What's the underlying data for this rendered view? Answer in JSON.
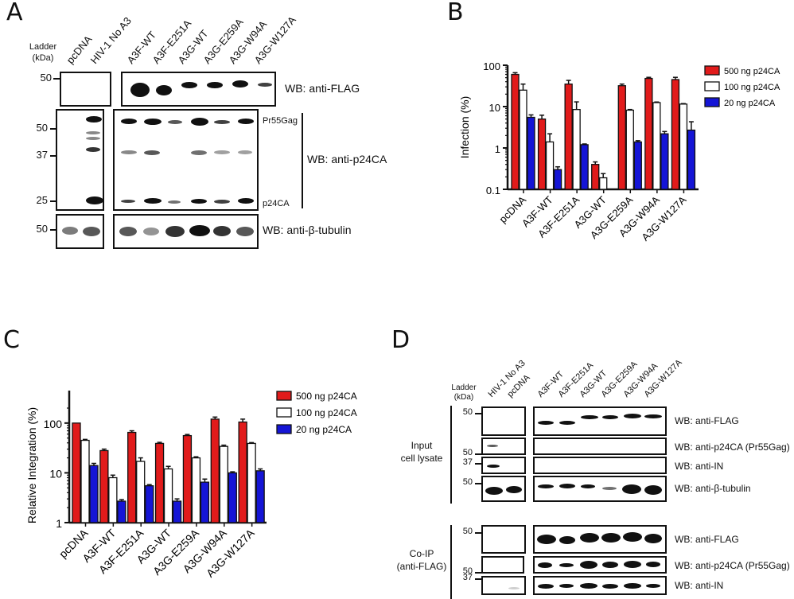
{
  "panels": {
    "A": {
      "letter": "A",
      "ladder_label": [
        "Ladder",
        "(kDa)"
      ],
      "lanes_left": [
        "pcDNA",
        "HIV-1 No A3"
      ],
      "lanes_right": [
        "A3F-WT",
        "A3F-E251A",
        "A3G-WT",
        "A3G-E259A",
        "A3G-W94A",
        "A3G-W127A"
      ],
      "blots": [
        {
          "label": "WB: anti-FLAG",
          "markers": [
            "50"
          ]
        },
        {
          "label": "WB: anti-p24CA",
          "markers": [
            "50",
            "37",
            "25"
          ],
          "band_labels": [
            "Pr55Gag",
            "p24CA"
          ]
        },
        {
          "label": "WB: anti-β-tubulin",
          "markers": [
            "50"
          ]
        }
      ]
    },
    "B": {
      "letter": "B"
    },
    "C": {
      "letter": "C"
    },
    "D": {
      "letter": "D",
      "ladder_label": [
        "Ladder",
        "(kDa)"
      ],
      "lanes_left": [
        "HIV-1 No A3",
        "pcDNA"
      ],
      "lanes_right": [
        "A3F-WT",
        "A3F-E251A",
        "A3G-WT",
        "A3G-E259A",
        "A3G-W94A",
        "A3G-W127A"
      ],
      "groups": [
        {
          "label": [
            "Input",
            "cell lysate"
          ],
          "blots": [
            {
              "label": "WB: anti-FLAG",
              "markers": [
                "50"
              ]
            },
            {
              "label": "WB: anti-p24CA (Pr55Gag)",
              "markers": [
                "50"
              ]
            },
            {
              "label": "WB: anti-IN",
              "markers": [
                "37"
              ]
            },
            {
              "label": "WB: anti-β-tubulin",
              "markers": [
                "50"
              ]
            }
          ]
        },
        {
          "label": [
            "Co-IP",
            "(anti-FLAG)"
          ],
          "blots": [
            {
              "label": "WB: anti-FLAG",
              "markers": [
                "50"
              ]
            },
            {
              "label": "WB: anti-p24CA (Pr55Gag)",
              "markers": [
                "50"
              ]
            },
            {
              "label": "WB: anti-IN",
              "markers": [
                "37"
              ]
            }
          ]
        }
      ]
    }
  },
  "chart_data": [
    {
      "panel": "B",
      "type": "bar",
      "title": "",
      "xlabel": "",
      "ylabel": "Infection (%)",
      "yscale": "log",
      "ylim": [
        0.1,
        100
      ],
      "yticks": [
        "0.1",
        "1",
        "10",
        "100"
      ],
      "categories": [
        "pcDNA",
        "A3F-WT",
        "A3F-E251A",
        "A3G-WT",
        "A3G-E259A",
        "A3G-W94A",
        "A3G-W127A"
      ],
      "legend_position": "top-right",
      "series": [
        {
          "name": "500 ng p24CA",
          "color": "#e11b1b",
          "values": [
            60,
            5,
            35,
            0.4,
            32,
            48,
            45
          ],
          "errors": [
            6,
            1.2,
            8,
            0.06,
            3,
            3,
            6
          ]
        },
        {
          "name": "100 ng p24CA",
          "color": "#ffffff",
          "values": [
            25,
            1.4,
            8.5,
            0.19,
            8.2,
            12.5,
            11.5
          ],
          "errors": [
            10,
            0.8,
            4.5,
            0.05,
            0.3,
            0.4,
            0.3
          ]
        },
        {
          "name": "20 ng p24CA",
          "color": "#1515d6",
          "values": [
            5.5,
            0.3,
            1.2,
            null,
            1.4,
            2.2,
            2.7
          ],
          "errors": [
            0.8,
            0.05,
            0.05,
            null,
            0.1,
            0.3,
            1.6
          ]
        }
      ]
    },
    {
      "panel": "C",
      "type": "bar",
      "title": "",
      "xlabel": "",
      "ylabel": "Relative Integration (%)",
      "yscale": "log",
      "ylim": [
        1,
        200
      ],
      "yticks": [
        "1",
        "10",
        "100"
      ],
      "categories": [
        "pcDNA",
        "A3F-WT",
        "A3F-E251A",
        "A3G-WT",
        "A3G-E259A",
        "A3G-W94A",
        "A3G-W127A"
      ],
      "legend_position": "top-right",
      "series": [
        {
          "name": "500 ng p24CA",
          "color": "#e11b1b",
          "values": [
            100,
            28,
            65,
            39,
            56,
            120,
            105
          ],
          "errors": [
            0,
            2,
            5,
            2,
            3,
            12,
            15
          ]
        },
        {
          "name": "100 ng p24CA",
          "color": "#ffffff",
          "values": [
            45,
            8,
            17,
            12,
            20,
            34,
            39
          ],
          "errors": [
            2,
            1,
            3,
            1.5,
            1,
            2,
            1.5
          ]
        },
        {
          "name": "20 ng p24CA",
          "color": "#1515d6",
          "values": [
            14,
            2.7,
            5.5,
            2.7,
            6.5,
            10,
            11
          ],
          "errors": [
            1.5,
            0.2,
            0.3,
            0.3,
            1,
            0.5,
            1
          ]
        }
      ]
    }
  ]
}
